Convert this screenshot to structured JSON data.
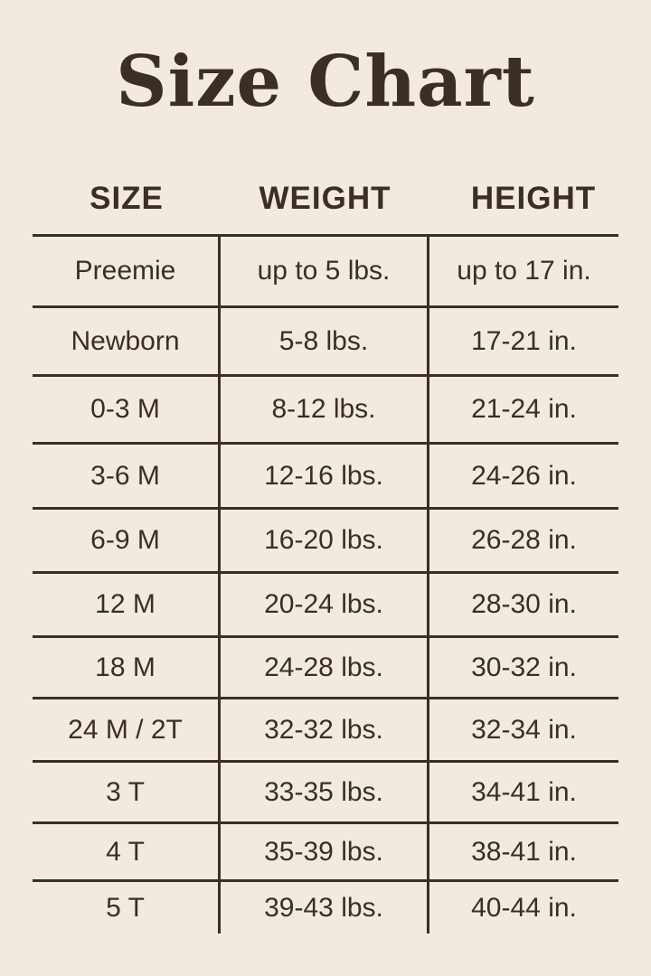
{
  "title": "Size Chart",
  "headers": [
    "SIZE",
    "WEIGHT",
    "HEIGHT"
  ],
  "rows": [
    {
      "size": "Preemie",
      "weight": "up to 5 lbs.",
      "height": "up to 17 in."
    },
    {
      "size": "Newborn",
      "weight": "5-8 lbs.",
      "height": "17-21 in."
    },
    {
      "size": "0-3 M",
      "weight": "8-12 lbs.",
      "height": "21-24 in."
    },
    {
      "size": "3-6 M",
      "weight": "12-16 lbs.",
      "height": "24-26 in."
    },
    {
      "size": "6-9 M",
      "weight": "16-20 lbs.",
      "height": "26-28 in."
    },
    {
      "size": "12 M",
      "weight": "20-24 lbs.",
      "height": "28-30 in."
    },
    {
      "size": "18 M",
      "weight": "24-28 lbs.",
      "height": "30-32 in."
    },
    {
      "size": "24 M / 2T",
      "weight": "32-32 lbs.",
      "height": "32-34 in."
    },
    {
      "size": "3 T",
      "weight": "33-35 lbs.",
      "height": "34-41 in."
    },
    {
      "size": "4 T",
      "weight": "35-39 lbs.",
      "height": "38-41 in."
    },
    {
      "size": "5 T",
      "weight": "39-43 lbs.",
      "height": "40-44 in."
    }
  ],
  "colors": {
    "background": "#f2eade",
    "text": "#3a2e26"
  }
}
